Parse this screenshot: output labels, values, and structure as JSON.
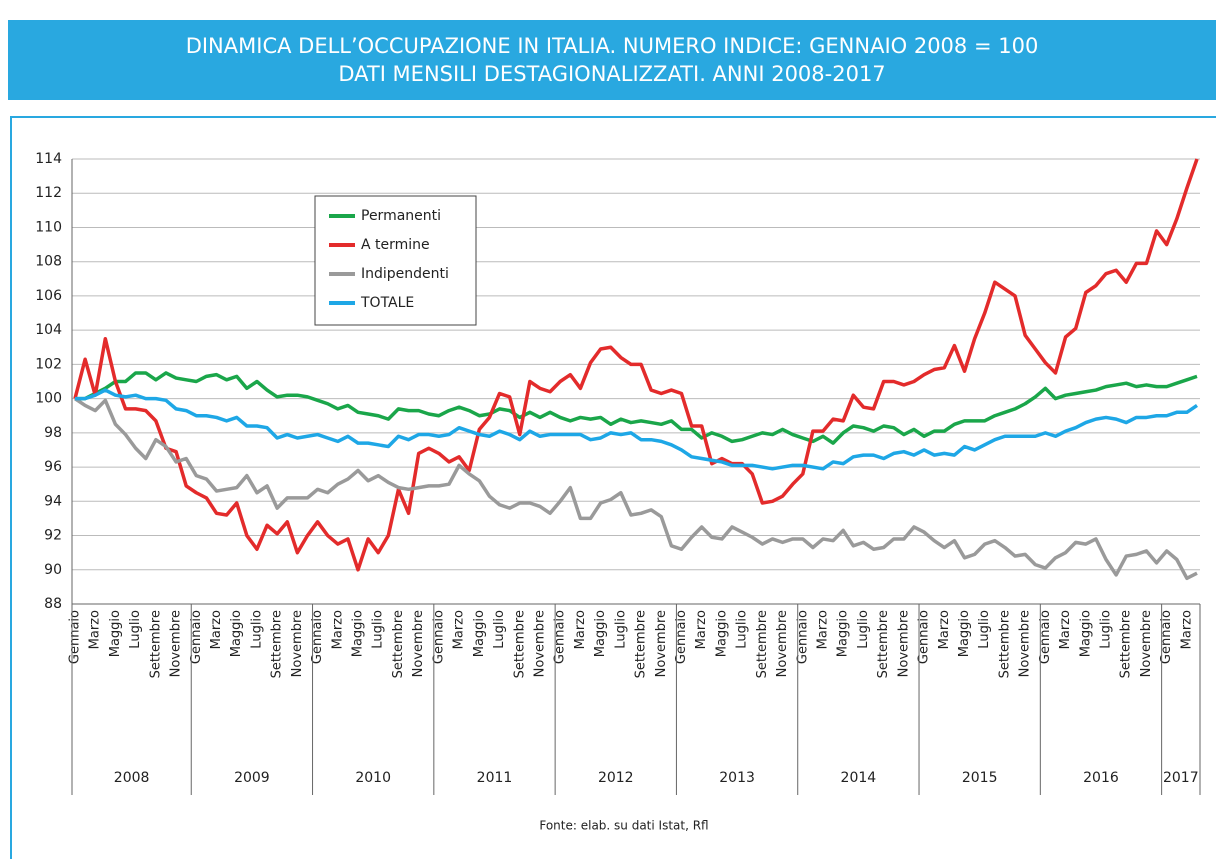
{
  "chart_data": {
    "type": "line",
    "title": "DINAMICA DELL’OCCUPAZIONE IN ITALIA. NUMERO INDICE: GENNAIO 2008 = 100",
    "subtitle": "DATI MENSILI DESTAGIONALIZZATI. ANNI 2008-2017",
    "source": "Fonte: elab. su dati Istat, Rfl",
    "years": [
      "2008",
      "2009",
      "2010",
      "2011",
      "2012",
      "2013",
      "2014",
      "2015",
      "2016",
      "2017"
    ],
    "categories": [
      "Gennaio",
      null,
      "Marzo",
      null,
      "Maggio",
      null,
      "Luglio",
      null,
      "Settembre",
      null,
      "Novembre",
      null,
      "Gennaio",
      null,
      "Marzo",
      null,
      "Maggio",
      null,
      "Luglio",
      null,
      "Settembre",
      null,
      "Novembre",
      null,
      "Gennaio",
      null,
      "Marzo",
      null,
      "Maggio",
      null,
      "Luglio",
      null,
      "Settembre",
      null,
      "Novembre",
      null,
      "Gennaio",
      null,
      "Marzo",
      null,
      "Maggio",
      null,
      "Luglio",
      null,
      "Settembre",
      null,
      "Novembre",
      null,
      "Gennaio",
      null,
      "Marzo",
      null,
      "Maggio",
      null,
      "Luglio",
      null,
      "Settembre",
      null,
      "Novembre",
      null,
      "Gennaio",
      null,
      "Marzo",
      null,
      "Maggio",
      null,
      "Luglio",
      null,
      "Settembre",
      null,
      "Novembre",
      null,
      "Gennaio",
      null,
      "Marzo",
      null,
      "Maggio",
      null,
      "Luglio",
      null,
      "Settembre",
      null,
      "Novembre",
      null,
      "Gennaio",
      null,
      "Marzo",
      null,
      "Maggio",
      null,
      "Luglio",
      null,
      "Settembre",
      null,
      "Novembre",
      null,
      "Gennaio",
      null,
      "Marzo",
      null,
      "Maggio",
      null,
      "Luglio",
      null,
      "Settembre",
      null,
      "Novembre",
      null,
      "Gennaio",
      null,
      "Marzo",
      null
    ],
    "series": [
      {
        "name": "Permanenti",
        "color": "#1aa64a",
        "values": [
          100,
          100,
          100.3,
          100.6,
          101.0,
          101.0,
          101.5,
          101.5,
          101.1,
          101.5,
          101.2,
          101.1,
          101.0,
          101.3,
          101.4,
          101.1,
          101.3,
          100.6,
          101.0,
          100.5,
          100.1,
          100.2,
          100.2,
          100.1,
          99.9,
          99.7,
          99.4,
          99.6,
          99.2,
          99.1,
          99.0,
          98.8,
          99.4,
          99.3,
          99.3,
          99.1,
          99.0,
          99.3,
          99.5,
          99.3,
          99.0,
          99.1,
          99.4,
          99.3,
          98.9,
          99.2,
          98.9,
          99.2,
          98.9,
          98.7,
          98.9,
          98.8,
          98.9,
          98.5,
          98.8,
          98.6,
          98.7,
          98.6,
          98.5,
          98.7,
          98.2,
          98.2,
          97.7,
          98.0,
          97.8,
          97.5,
          97.6,
          97.8,
          98.0,
          97.9,
          98.2,
          97.9,
          97.7,
          97.5,
          97.8,
          97.4,
          98.0,
          98.4,
          98.3,
          98.1,
          98.4,
          98.3,
          97.9,
          98.2,
          97.8,
          98.1,
          98.1,
          98.5,
          98.7,
          98.7,
          98.7,
          99.0,
          99.2,
          99.4,
          99.7,
          100.1,
          100.6,
          100.0,
          100.2,
          100.3,
          100.4,
          100.5,
          100.7,
          100.8,
          100.9,
          100.7,
          100.8,
          100.7,
          100.7,
          100.9,
          101.1,
          101.3
        ]
      },
      {
        "name": "A termine",
        "color": "#e32b2b",
        "values": [
          100,
          102.3,
          100.2,
          103.5,
          101.0,
          99.4,
          99.4,
          99.3,
          98.7,
          97.1,
          96.9,
          94.9,
          94.5,
          94.2,
          93.3,
          93.2,
          93.9,
          92.0,
          91.2,
          92.6,
          92.1,
          92.8,
          91.0,
          92.0,
          92.8,
          92.0,
          91.5,
          91.8,
          90.0,
          91.8,
          91.0,
          92.0,
          94.7,
          93.3,
          96.8,
          97.1,
          96.8,
          96.3,
          96.6,
          95.8,
          98.2,
          98.9,
          100.3,
          100.1,
          97.9,
          101.0,
          100.6,
          100.4,
          101.0,
          101.4,
          100.6,
          102.1,
          102.9,
          103.0,
          102.4,
          102.0,
          102.0,
          100.5,
          100.3,
          100.5,
          100.3,
          98.4,
          98.4,
          96.2,
          96.5,
          96.2,
          96.2,
          95.6,
          93.9,
          94.0,
          94.3,
          95.0,
          95.6,
          98.1,
          98.1,
          98.8,
          98.7,
          100.2,
          99.5,
          99.4,
          101.0,
          101.0,
          100.8,
          101.0,
          101.4,
          101.7,
          101.8,
          103.1,
          101.6,
          103.5,
          105.0,
          106.8,
          106.4,
          106.0,
          103.7,
          102.9,
          102.1,
          101.5,
          103.6,
          104.1,
          106.2,
          106.6,
          107.3,
          107.5,
          106.8,
          107.9,
          107.9,
          109.8,
          109.0,
          110.5,
          112.3,
          114.0
        ]
      },
      {
        "name": "Indipendenti",
        "color": "#9a9a9a",
        "values": [
          100,
          99.6,
          99.3,
          99.9,
          98.5,
          97.9,
          97.1,
          96.5,
          97.6,
          97.2,
          96.3,
          96.5,
          95.5,
          95.3,
          94.6,
          94.7,
          94.8,
          95.5,
          94.5,
          94.9,
          93.6,
          94.2,
          94.2,
          94.2,
          94.7,
          94.5,
          95.0,
          95.3,
          95.8,
          95.2,
          95.5,
          95.1,
          94.8,
          94.7,
          94.8,
          94.9,
          94.9,
          95.0,
          96.1,
          95.6,
          95.2,
          94.3,
          93.8,
          93.6,
          93.9,
          93.9,
          93.7,
          93.3,
          94.0,
          94.8,
          93.0,
          93.0,
          93.9,
          94.1,
          94.5,
          93.2,
          93.3,
          93.5,
          93.1,
          91.4,
          91.2,
          91.9,
          92.5,
          91.9,
          91.8,
          92.5,
          92.2,
          91.9,
          91.5,
          91.8,
          91.6,
          91.8,
          91.8,
          91.3,
          91.8,
          91.7,
          92.3,
          91.4,
          91.6,
          91.2,
          91.3,
          91.8,
          91.8,
          92.5,
          92.2,
          91.7,
          91.3,
          91.7,
          90.7,
          90.9,
          91.5,
          91.7,
          91.3,
          90.8,
          90.9,
          90.3,
          90.1,
          90.7,
          91.0,
          91.6,
          91.5,
          91.8,
          90.6,
          89.7,
          90.8,
          90.9,
          91.1,
          90.4,
          91.1,
          90.6,
          89.5,
          89.8
        ]
      },
      {
        "name": "TOTALE",
        "color": "#1ea7e6",
        "values": [
          100,
          100,
          100.2,
          100.5,
          100.2,
          100.1,
          100.2,
          100.0,
          100.0,
          99.9,
          99.4,
          99.3,
          99.0,
          99.0,
          98.9,
          98.7,
          98.9,
          98.4,
          98.4,
          98.3,
          97.7,
          97.9,
          97.7,
          97.8,
          97.9,
          97.7,
          97.5,
          97.8,
          97.4,
          97.4,
          97.3,
          97.2,
          97.8,
          97.6,
          97.9,
          97.9,
          97.8,
          97.9,
          98.3,
          98.1,
          97.9,
          97.8,
          98.1,
          97.9,
          97.6,
          98.1,
          97.8,
          97.9,
          97.9,
          97.9,
          97.9,
          97.6,
          97.7,
          98.0,
          97.9,
          98.0,
          97.6,
          97.6,
          97.5,
          97.3,
          97.0,
          96.6,
          96.5,
          96.4,
          96.3,
          96.1,
          96.1,
          96.1,
          96.0,
          95.9,
          96.0,
          96.1,
          96.1,
          96.0,
          95.9,
          96.3,
          96.2,
          96.6,
          96.7,
          96.7,
          96.5,
          96.8,
          96.9,
          96.7,
          97.0,
          96.7,
          96.8,
          96.7,
          97.2,
          97.0,
          97.3,
          97.6,
          97.8,
          97.8,
          97.8,
          97.8,
          98.0,
          97.8,
          98.1,
          98.3,
          98.6,
          98.8,
          98.9,
          98.8,
          98.6,
          98.9,
          98.9,
          99.0,
          99.0,
          99.2,
          99.2,
          99.6
        ]
      }
    ],
    "ylim": [
      88,
      114
    ],
    "yticks": [
      88,
      90,
      92,
      94,
      96,
      98,
      100,
      102,
      104,
      106,
      108,
      110,
      112,
      114
    ],
    "grid": true,
    "legend": "upper left"
  }
}
